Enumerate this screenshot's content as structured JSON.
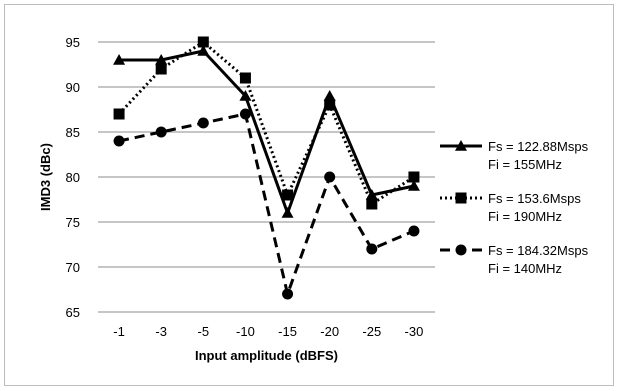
{
  "chart_data": {
    "type": "line",
    "title": "",
    "xlabel": "Input amplitude (dBFS)",
    "ylabel": "IMD3 (dBc)",
    "categories": [
      "-1",
      "-3",
      "-5",
      "-10",
      "-15",
      "-20",
      "-25",
      "-30"
    ],
    "ylim": [
      65,
      95
    ],
    "yticks": [
      "65",
      "70",
      "75",
      "80",
      "85",
      "90",
      "95"
    ],
    "grid": "horizontal",
    "legend_position": "right",
    "series": [
      {
        "line1": "Fs = 122.88Msps",
        "line2": "Fi = 155MHz",
        "marker": "triangle",
        "dash": "solid",
        "values": [
          93,
          93,
          94,
          89,
          76,
          89,
          78,
          79
        ]
      },
      {
        "line1": "Fs = 153.6Msps",
        "line2": "Fi = 190MHz",
        "marker": "square",
        "dash": "dotted",
        "values": [
          87,
          92,
          95,
          91,
          78,
          88,
          77,
          80
        ]
      },
      {
        "line1": "Fs = 184.32Msps",
        "line2": "Fi = 140MHz",
        "marker": "circle",
        "dash": "dashed",
        "values": [
          84,
          85,
          86,
          87,
          67,
          80,
          72,
          74
        ]
      }
    ]
  }
}
